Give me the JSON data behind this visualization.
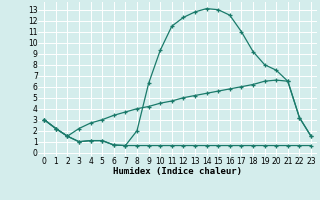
{
  "bg_color": "#d4edec",
  "grid_color": "#ffffff",
  "line_color": "#1a7a6a",
  "line_width": 0.9,
  "marker": "+",
  "marker_size": 3.5,
  "marker_lw": 0.9,
  "xlabel": "Humidex (Indice chaleur)",
  "xlabel_fontsize": 6.5,
  "xlabel_bold": true,
  "tick_fontsize": 5.5,
  "xlim": [
    -0.5,
    23.5
  ],
  "ylim": [
    -0.3,
    13.7
  ],
  "xticks": [
    0,
    1,
    2,
    3,
    4,
    5,
    6,
    7,
    8,
    9,
    10,
    11,
    12,
    13,
    14,
    15,
    16,
    17,
    18,
    19,
    20,
    21,
    22,
    23
  ],
  "yticks": [
    0,
    1,
    2,
    3,
    4,
    5,
    6,
    7,
    8,
    9,
    10,
    11,
    12,
    13
  ],
  "curve1_x": [
    0,
    1,
    2,
    3,
    4,
    5,
    6,
    7,
    8,
    9,
    10,
    11,
    12,
    13,
    14,
    15,
    16,
    17,
    18,
    19,
    20,
    21,
    22,
    23
  ],
  "curve1_y": [
    3.0,
    2.2,
    1.5,
    1.0,
    1.1,
    1.1,
    0.7,
    0.65,
    2.0,
    6.3,
    9.3,
    11.5,
    12.3,
    12.8,
    13.1,
    13.0,
    12.5,
    11.0,
    9.2,
    8.0,
    7.5,
    6.5,
    3.2,
    1.5
  ],
  "curve2_x": [
    0,
    1,
    2,
    3,
    4,
    5,
    6,
    7,
    8,
    9,
    10,
    11,
    12,
    13,
    14,
    15,
    16,
    17,
    18,
    19,
    20,
    21,
    22,
    23
  ],
  "curve2_y": [
    3.0,
    2.2,
    1.5,
    2.2,
    2.7,
    3.0,
    3.4,
    3.7,
    4.0,
    4.2,
    4.5,
    4.7,
    5.0,
    5.2,
    5.4,
    5.6,
    5.8,
    6.0,
    6.2,
    6.5,
    6.6,
    6.5,
    3.2,
    1.5
  ],
  "curve3_x": [
    0,
    1,
    2,
    3,
    4,
    5,
    6,
    7,
    8,
    9,
    10,
    11,
    12,
    13,
    14,
    15,
    16,
    17,
    18,
    19,
    20,
    21,
    22,
    23
  ],
  "curve3_y": [
    3.0,
    2.2,
    1.5,
    1.0,
    1.1,
    1.1,
    0.7,
    0.65,
    0.65,
    0.65,
    0.65,
    0.65,
    0.65,
    0.65,
    0.65,
    0.65,
    0.65,
    0.65,
    0.65,
    0.65,
    0.65,
    0.65,
    0.65,
    0.65
  ]
}
